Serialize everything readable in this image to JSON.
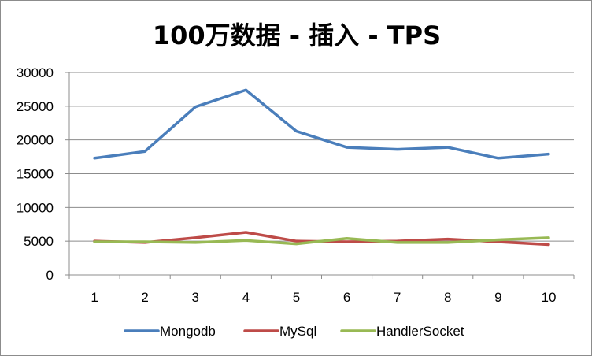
{
  "chart_data": {
    "type": "line",
    "title": "100万数据 - 插入 - TPS",
    "categories": [
      "1",
      "2",
      "3",
      "4",
      "5",
      "6",
      "7",
      "8",
      "9",
      "10"
    ],
    "ylim": [
      0,
      30000
    ],
    "yticks": [
      "0",
      "5000",
      "10000",
      "15000",
      "20000",
      "25000",
      "30000"
    ],
    "grid": true,
    "legend_position": "bottom",
    "series": [
      {
        "name": "Mongodb",
        "color": "#4a7ebb",
        "values": [
          17300,
          18300,
          24900,
          27400,
          21300,
          18900,
          18600,
          18900,
          17300,
          17900
        ]
      },
      {
        "name": "MySql",
        "color": "#be4b48",
        "values": [
          5000,
          4800,
          5500,
          6300,
          5000,
          4900,
          5000,
          5300,
          4900,
          4500
        ]
      },
      {
        "name": "HandlerSocket",
        "color": "#98b954",
        "values": [
          4900,
          4900,
          4800,
          5100,
          4600,
          5400,
          4800,
          4800,
          5200,
          5500
        ]
      }
    ]
  }
}
